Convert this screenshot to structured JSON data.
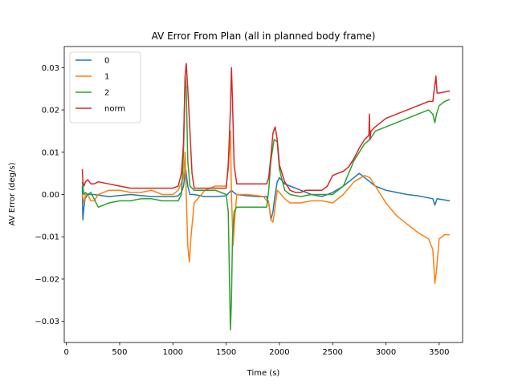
{
  "chart_data": {
    "type": "line",
    "title": "AV Error From Plan (all in planned body frame)",
    "xlabel": "Time (s)",
    "ylabel": "AV Error (deg/s)",
    "xlim": [
      -20,
      3720
    ],
    "ylim": [
      -0.035,
      0.035
    ],
    "xticks": [
      0,
      500,
      1000,
      1500,
      2000,
      2500,
      3000,
      3500
    ],
    "yticks": [
      -0.03,
      -0.02,
      -0.01,
      0.0,
      0.01,
      0.02,
      0.03
    ],
    "ytick_labels": [
      "−0.03",
      "−0.02",
      "−0.01",
      "0.00",
      "0.01",
      "0.02",
      "0.03"
    ],
    "grid": false,
    "legend_position": "upper-left",
    "series": [
      {
        "name": "0",
        "color": "#1f77b4",
        "x": [
          150,
          155,
          165,
          175,
          200,
          260,
          400,
          600,
          800,
          1000,
          1050,
          1080,
          1100,
          1120,
          1140,
          1160,
          1200,
          1300,
          1400,
          1500,
          1530,
          1550,
          1570,
          1600,
          1700,
          1800,
          1880,
          1900,
          1920,
          1940,
          1960,
          1980,
          2000,
          2050,
          2100,
          2200,
          2300,
          2400,
          2500,
          2600,
          2700,
          2750,
          2800,
          2850,
          2900,
          3000,
          3100,
          3200,
          3300,
          3400,
          3440,
          3460,
          3480,
          3600
        ],
        "y": [
          0.002,
          -0.006,
          -0.003,
          -0.001,
          0.0,
          0.0,
          -0.0005,
          0.0,
          -0.0005,
          -0.0005,
          -0.0003,
          0.0005,
          0.002,
          0.006,
          0.002,
          0.0,
          0.0,
          -0.0005,
          -0.0005,
          -0.0003,
          0.0005,
          0.001,
          0.0005,
          0.0,
          -0.0003,
          -0.0005,
          -0.0005,
          -0.002,
          -0.006,
          -0.004,
          0.0,
          0.003,
          0.004,
          0.0025,
          0.002,
          0.001,
          0.0,
          -0.0005,
          0.0005,
          0.002,
          0.004,
          0.005,
          0.004,
          0.003,
          0.002,
          0.001,
          0.0005,
          0.0,
          -0.0003,
          -0.0008,
          -0.001,
          -0.0025,
          -0.001,
          -0.0015
        ]
      },
      {
        "name": "1",
        "color": "#ff7f0e",
        "x": [
          150,
          165,
          180,
          200,
          230,
          260,
          300,
          400,
          500,
          600,
          700,
          800,
          900,
          1000,
          1050,
          1100,
          1115,
          1125,
          1140,
          1155,
          1170,
          1200,
          1300,
          1400,
          1500,
          1520,
          1540,
          1550,
          1565,
          1580,
          1600,
          1700,
          1800,
          1850,
          1900,
          1920,
          1940,
          1960,
          1980,
          2000,
          2050,
          2100,
          2200,
          2300,
          2400,
          2500,
          2600,
          2700,
          2800,
          2850,
          2900,
          3000,
          3100,
          3200,
          3300,
          3400,
          3440,
          3460,
          3475,
          3500,
          3550,
          3600
        ],
        "y": [
          0.0,
          -0.002,
          0.0,
          0.0,
          -0.0015,
          -0.0015,
          0.0,
          0.001,
          0.001,
          0.0005,
          0.0005,
          0.001,
          0.0,
          0.0,
          0.001,
          0.004,
          0.01,
          0.0,
          -0.012,
          -0.016,
          -0.01,
          -0.002,
          0.001,
          0.002,
          0.002,
          0.006,
          0.015,
          0.0,
          -0.012,
          -0.006,
          0.0,
          0.0,
          -0.0003,
          -0.0005,
          -0.002,
          -0.006,
          -0.0065,
          -0.003,
          0.001,
          0.0005,
          -0.001,
          -0.002,
          -0.002,
          -0.0015,
          -0.0015,
          -0.002,
          0.0,
          0.003,
          0.0045,
          0.004,
          0.002,
          -0.002,
          -0.005,
          -0.007,
          -0.009,
          -0.0105,
          -0.013,
          -0.021,
          -0.018,
          -0.0105,
          -0.0095,
          -0.0095
        ]
      },
      {
        "name": "2",
        "color": "#2ca02c",
        "x": [
          150,
          165,
          180,
          200,
          230,
          260,
          300,
          400,
          500,
          600,
          700,
          800,
          900,
          1000,
          1050,
          1080,
          1100,
          1115,
          1125,
          1140,
          1160,
          1200,
          1300,
          1400,
          1500,
          1520,
          1540,
          1550,
          1560,
          1575,
          1600,
          1700,
          1800,
          1880,
          1900,
          1920,
          1950,
          1980,
          2000,
          2050,
          2100,
          2200,
          2300,
          2400,
          2450,
          2500,
          2550,
          2600,
          2700,
          2800,
          2850,
          2900,
          3000,
          3100,
          3200,
          3300,
          3400,
          3440,
          3460,
          3475,
          3500,
          3550,
          3600
        ],
        "y": [
          0.003,
          0.0,
          0.0005,
          0.0,
          0.0005,
          -0.001,
          -0.003,
          -0.002,
          -0.0015,
          -0.0015,
          -0.001,
          -0.001,
          -0.0015,
          -0.0015,
          -0.0015,
          0.0,
          0.01,
          0.028,
          0.025,
          0.008,
          0.002,
          0.001,
          0.001,
          0.001,
          0.0,
          -0.004,
          -0.032,
          -0.025,
          -0.01,
          -0.004,
          -0.003,
          -0.003,
          -0.003,
          -0.003,
          0.001,
          0.008,
          0.013,
          0.0125,
          0.006,
          0.001,
          0.0,
          -0.0005,
          0.0,
          0.0,
          0.0,
          0.0,
          0.001,
          0.002,
          0.008,
          0.012,
          0.013,
          0.015,
          0.016,
          0.017,
          0.018,
          0.019,
          0.02,
          0.019,
          0.017,
          0.019,
          0.021,
          0.022,
          0.0225
        ]
      },
      {
        "name": "norm",
        "color": "#d62728",
        "x": [
          150,
          155,
          165,
          180,
          200,
          230,
          260,
          300,
          400,
          500,
          600,
          700,
          800,
          900,
          1000,
          1050,
          1080,
          1100,
          1115,
          1125,
          1140,
          1160,
          1180,
          1200,
          1300,
          1400,
          1500,
          1520,
          1540,
          1550,
          1560,
          1575,
          1600,
          1700,
          1800,
          1880,
          1900,
          1920,
          1940,
          1960,
          1980,
          2000,
          2050,
          2100,
          2150,
          2200,
          2250,
          2300,
          2400,
          2450,
          2500,
          2550,
          2600,
          2650,
          2700,
          2750,
          2800,
          2840,
          2845,
          2850,
          2860,
          2900,
          3000,
          3100,
          3200,
          3300,
          3400,
          3440,
          3460,
          3470,
          3480,
          3500,
          3600
        ],
        "y": [
          0.006,
          0.003,
          0.002,
          0.003,
          0.0035,
          0.0025,
          0.0025,
          0.003,
          0.0025,
          0.002,
          0.0015,
          0.0015,
          0.0015,
          0.0015,
          0.0015,
          0.002,
          0.005,
          0.012,
          0.028,
          0.031,
          0.025,
          0.015,
          0.005,
          0.0015,
          0.0015,
          0.0015,
          0.0015,
          0.007,
          0.02,
          0.03,
          0.022,
          0.007,
          0.0025,
          0.0025,
          0.0025,
          0.0025,
          0.004,
          0.009,
          0.0145,
          0.016,
          0.013,
          0.007,
          0.003,
          0.001,
          0.0005,
          0.0005,
          0.001,
          0.001,
          0.001,
          0.002,
          0.0045,
          0.005,
          0.0055,
          0.0065,
          0.0085,
          0.011,
          0.013,
          0.014,
          0.019,
          0.013,
          0.015,
          0.016,
          0.018,
          0.019,
          0.02,
          0.021,
          0.022,
          0.022,
          0.026,
          0.028,
          0.024,
          0.024,
          0.0245
        ]
      }
    ]
  }
}
